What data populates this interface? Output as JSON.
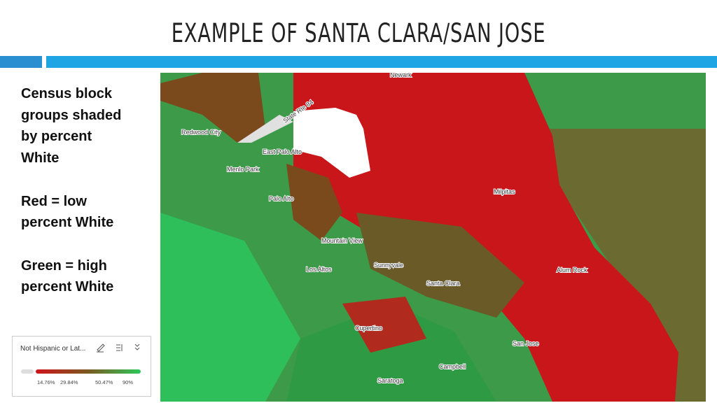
{
  "header": {
    "title": "EXAMPLE OF SANTA CLARA/SAN JOSE"
  },
  "sidebar": {
    "paragraphs": [
      [
        "Census block",
        "groups shaded",
        "by percent",
        "White"
      ],
      [
        "Red = low",
        "percent White"
      ],
      [
        "Green = high",
        "percent White"
      ]
    ]
  },
  "legend": {
    "field": "Not Hispanic or Lat...",
    "ticks": [
      "14.76%",
      "29.84%",
      "50.47%",
      "90%"
    ]
  },
  "map": {
    "labels": [
      "Newark",
      "Redwood City",
      "East Palo Alto",
      "Menlo Park",
      "Palo Alto",
      "Mountain View",
      "Los Altos",
      "Sunnyvale",
      "Santa Clara",
      "Milpitas",
      "San Jose",
      "Cupertino",
      "Campbell",
      "Saratoga",
      "Alum Rock",
      "State Rte 84"
    ]
  }
}
